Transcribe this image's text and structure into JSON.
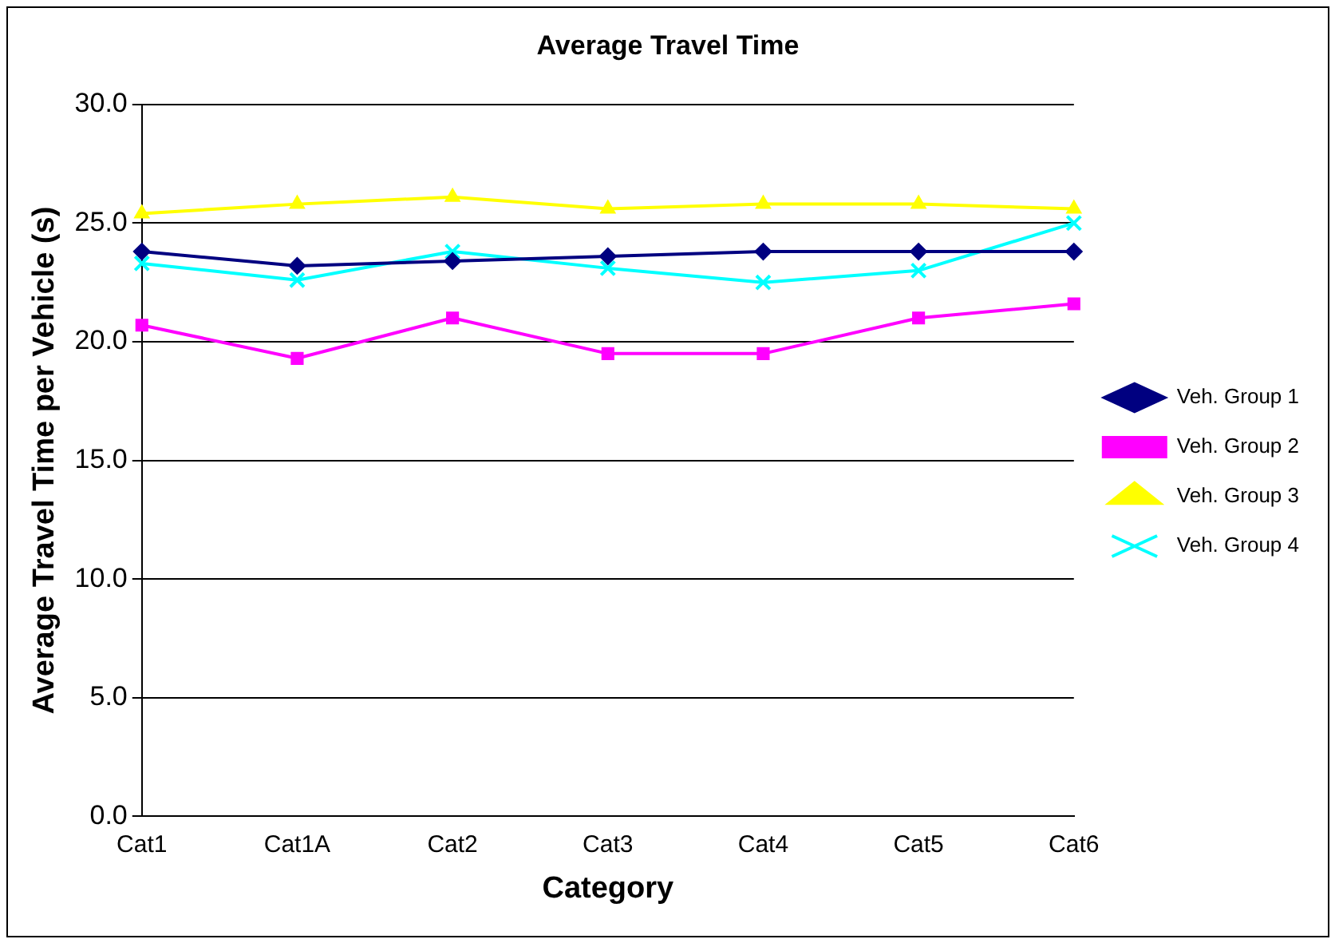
{
  "chart_data": {
    "type": "line",
    "title": "Average Travel Time",
    "xlabel": "Category",
    "ylabel": "Average Travel Time per Vehicle (s)",
    "categories": [
      "Cat1",
      "Cat1A",
      "Cat2",
      "Cat3",
      "Cat4",
      "Cat5",
      "Cat6"
    ],
    "series": [
      {
        "name": "Veh. Group 1",
        "color": "#000080",
        "marker": "diamond",
        "values": [
          23.8,
          23.2,
          23.4,
          23.6,
          23.8,
          23.8,
          23.8
        ]
      },
      {
        "name": "Veh. Group 2",
        "color": "#ff00ff",
        "marker": "square",
        "values": [
          20.7,
          19.3,
          21.0,
          19.5,
          19.5,
          21.0,
          21.6
        ]
      },
      {
        "name": "Veh. Group 3",
        "color": "#ffff00",
        "marker": "triangle",
        "values": [
          25.4,
          25.8,
          26.1,
          25.6,
          25.8,
          25.8,
          25.6
        ]
      },
      {
        "name": "Veh. Group 4",
        "color": "#00ffff",
        "marker": "cross",
        "values": [
          23.3,
          22.6,
          23.8,
          23.1,
          22.5,
          23.0,
          25.0
        ]
      }
    ],
    "ylim": [
      0,
      30
    ],
    "yticks": [
      {
        "value": 0,
        "label": "0.0"
      },
      {
        "value": 5,
        "label": "5.0"
      },
      {
        "value": 10,
        "label": "10.0"
      },
      {
        "value": 15,
        "label": "15.0"
      },
      {
        "value": 20,
        "label": "20.0"
      },
      {
        "value": 25,
        "label": "25.0"
      },
      {
        "value": 30,
        "label": "30.0"
      }
    ],
    "grid": "y",
    "legend": "right"
  }
}
